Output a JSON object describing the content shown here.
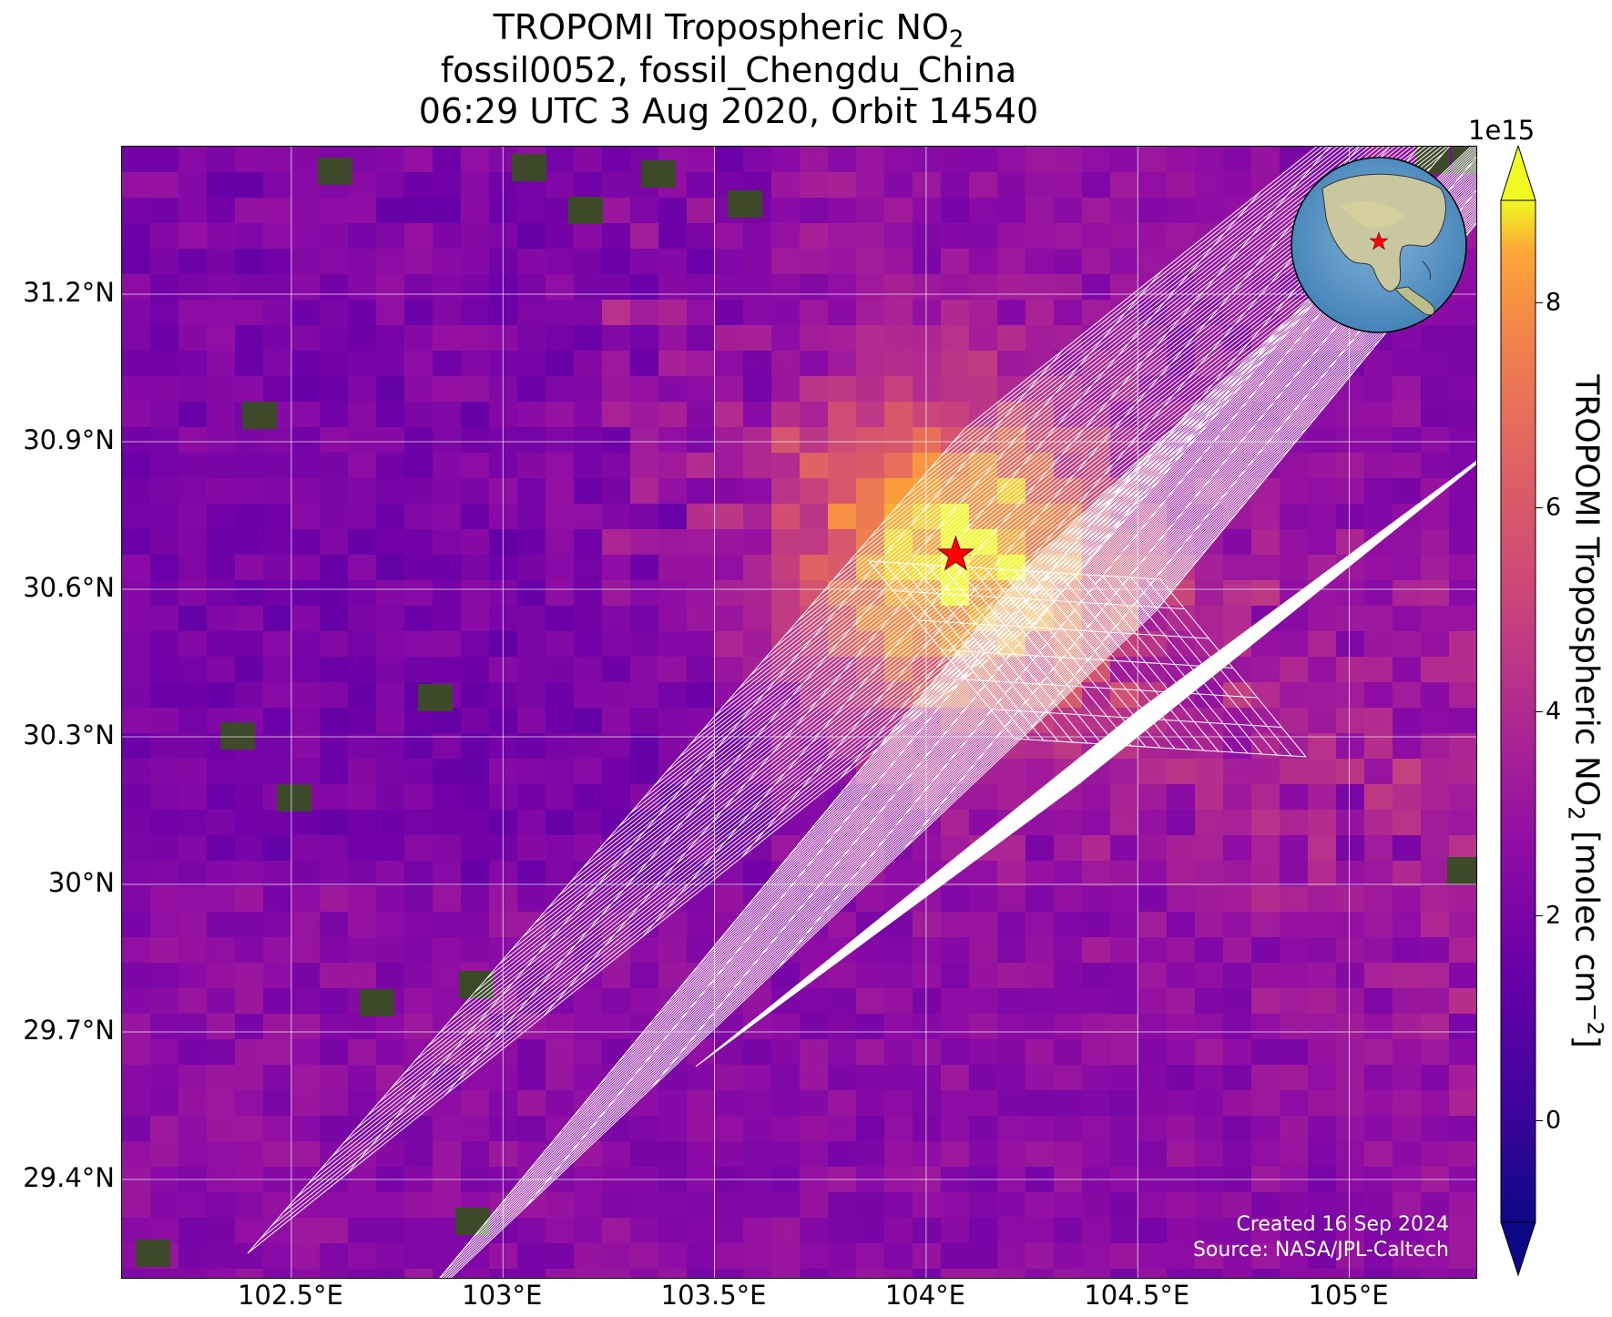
{
  "title": {
    "line1_prefix": "TROPOMI Tropospheric NO",
    "line1_sub": "2",
    "line2": "fossil0052, fossil_Chengdu_China",
    "line3": "06:29 UTC 3 Aug 2020, Orbit 14540"
  },
  "map": {
    "lat_ticks": [
      "31.2°N",
      "30.9°N",
      "30.6°N",
      "30.3°N",
      "30°N",
      "29.7°N",
      "29.4°N"
    ],
    "lon_ticks": [
      "102.5°E",
      "103°E",
      "103.5°E",
      "104°E",
      "104.5°E",
      "105°E"
    ],
    "lat_values": [
      31.2,
      30.9,
      30.6,
      30.3,
      30.0,
      29.7,
      29.4
    ],
    "lon_values": [
      102.5,
      103.0,
      103.5,
      104.0,
      104.5,
      105.0
    ],
    "lon_range": [
      102.1,
      105.3
    ],
    "lat_range": [
      29.2,
      31.5
    ],
    "target": {
      "name": "star-marker",
      "lon": 104.07,
      "lat": 30.67,
      "color": "#ff0000"
    },
    "gridline_color": "#ffffff",
    "footprint_color": "#ffffff"
  },
  "colorbar": {
    "label_prefix": "TROPOMI Tropospheric NO",
    "label_sub": "2",
    "label_suffix": " [molec cm",
    "label_sup": "−2",
    "label_end": "]",
    "exponent": "1e15",
    "ticks": [
      "0",
      "2",
      "4",
      "6",
      "8"
    ],
    "tick_values": [
      0,
      2,
      4,
      6,
      8
    ],
    "range": [
      -1,
      9
    ],
    "colormap": "plasma",
    "extend": "both"
  },
  "credits": {
    "created": "Created 16 Sep 2024",
    "source": "Source: NASA/JPL-Caltech"
  },
  "inset": {
    "name": "globe-inset",
    "star_color": "#ff0000"
  }
}
